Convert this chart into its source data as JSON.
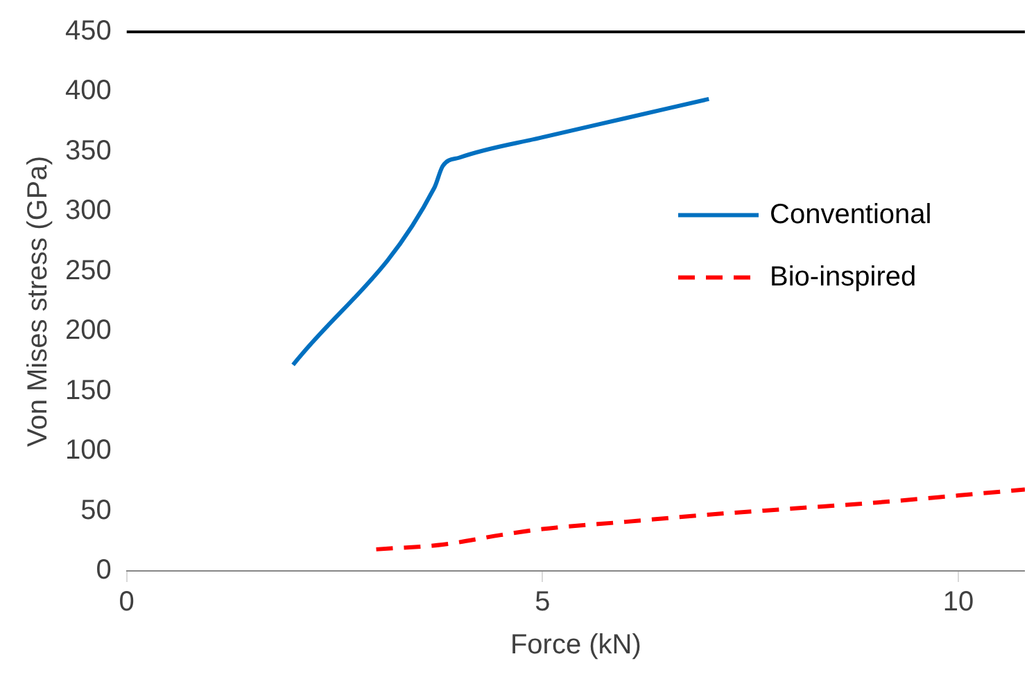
{
  "chart_data": {
    "type": "line",
    "xlabel": "Force (kN)",
    "ylabel": "Von Mises stress (GPa)",
    "xlim": [
      0,
      10.8
    ],
    "xticks": [
      0,
      5,
      10
    ],
    "ylim": [
      0,
      450
    ],
    "yticks": [
      0,
      50,
      100,
      150,
      200,
      250,
      300,
      350,
      400,
      450
    ],
    "grid": false,
    "legend": "right",
    "marker": "none",
    "series": [
      {
        "name": "Conventional",
        "color": "#0070c0",
        "line_style": "solid",
        "x": [
          2,
          3.7,
          3.8,
          4,
          5,
          6,
          7
        ],
        "values": [
          172,
          320,
          338,
          345,
          362,
          378,
          394
        ]
      },
      {
        "name": "Bio-inspired",
        "color": "#ff0000",
        "line_style": "dashed",
        "x": [
          3,
          3.8,
          4.5,
          5,
          6,
          7,
          8,
          9,
          10,
          10.8
        ],
        "values": [
          18,
          22,
          30,
          35,
          41,
          47,
          52,
          57,
          63,
          68
        ]
      }
    ]
  }
}
